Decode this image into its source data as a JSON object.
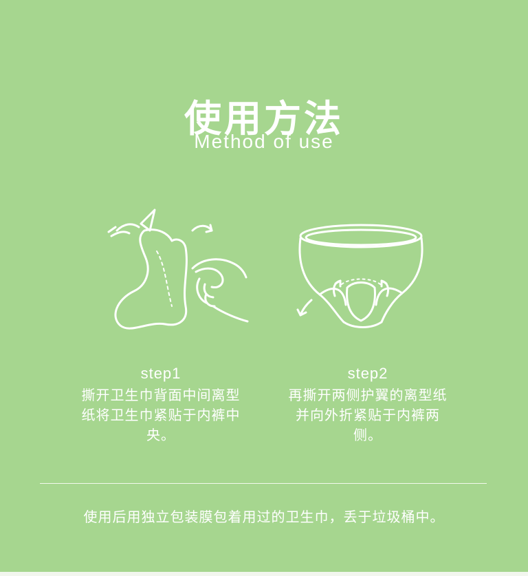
{
  "title": "使用方法",
  "subtitle": "Method of use",
  "steps": [
    {
      "label": "step1",
      "description": "撕开卫生巾背面中间离型纸将卫生巾紧贴于内裤中央。",
      "icon": "tear-pad-paper-icon"
    },
    {
      "label": "step2",
      "description": "再撕开两侧护翼的离型纸并向外折紧贴于内裤两侧。",
      "icon": "fold-wings-underwear-icon"
    }
  ],
  "footer": "使用后用独立包装膜包着用过的卫生巾，丢于垃圾桶中。",
  "colors": {
    "background": "#a6d68f",
    "text": "#ffffff"
  }
}
